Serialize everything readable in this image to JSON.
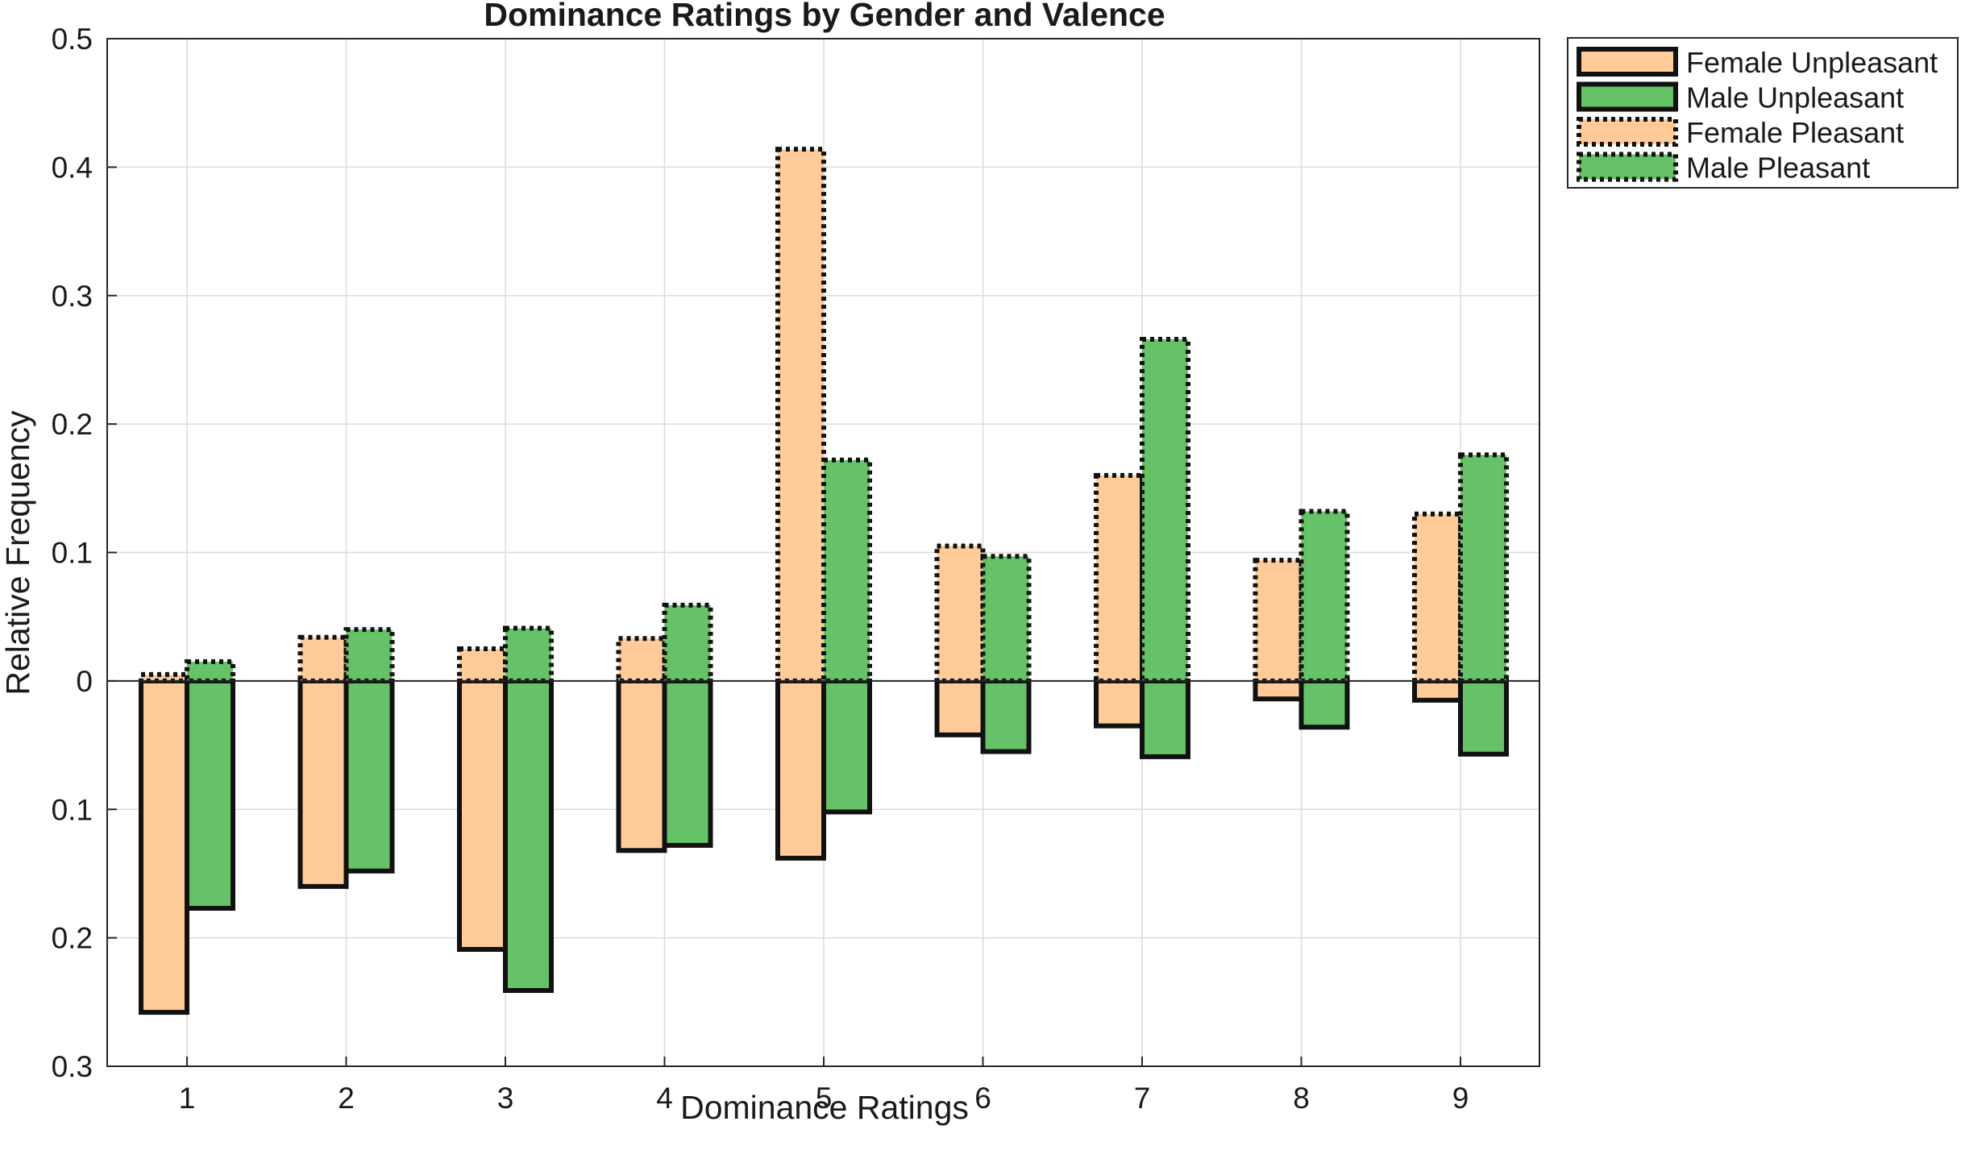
{
  "chart_data": {
    "type": "bar",
    "title": "Dominance Ratings by Gender and Valence",
    "xlabel": "Dominance Ratings",
    "ylabel": "Relative Frequency",
    "categories": [
      "1",
      "2",
      "3",
      "4",
      "5",
      "6",
      "7",
      "8",
      "9"
    ],
    "ylim": [
      -0.3,
      0.5
    ],
    "yticks": [
      0.5,
      0.4,
      0.3,
      0.2,
      0.1,
      0,
      -0.1,
      -0.2,
      -0.3
    ],
    "ytick_labels": [
      "0.5",
      "0.4",
      "0.3",
      "0.2",
      "0.1",
      "0",
      "0.1",
      "0.2",
      "0.3"
    ],
    "grid": true,
    "legend_position": "outside-top-right",
    "series": [
      {
        "name": "Female Unpleasant",
        "color": "#FFCC99",
        "border": "solid",
        "direction": "down",
        "values": [
          -0.258,
          -0.16,
          -0.209,
          -0.132,
          -0.138,
          -0.042,
          -0.035,
          -0.014,
          -0.015
        ]
      },
      {
        "name": "Male Unpleasant",
        "color": "#66C266",
        "border": "solid",
        "direction": "down",
        "values": [
          -0.177,
          -0.148,
          -0.241,
          -0.128,
          -0.102,
          -0.055,
          -0.059,
          -0.036,
          -0.057
        ]
      },
      {
        "name": "Female Pleasant",
        "color": "#FFCC99",
        "border": "dotted",
        "direction": "up",
        "values": [
          0.005,
          0.034,
          0.025,
          0.033,
          0.414,
          0.105,
          0.16,
          0.094,
          0.13
        ]
      },
      {
        "name": "Male Pleasant",
        "color": "#66C266",
        "border": "dotted",
        "direction": "up",
        "values": [
          0.015,
          0.04,
          0.041,
          0.059,
          0.172,
          0.097,
          0.266,
          0.132,
          0.176
        ]
      }
    ]
  }
}
